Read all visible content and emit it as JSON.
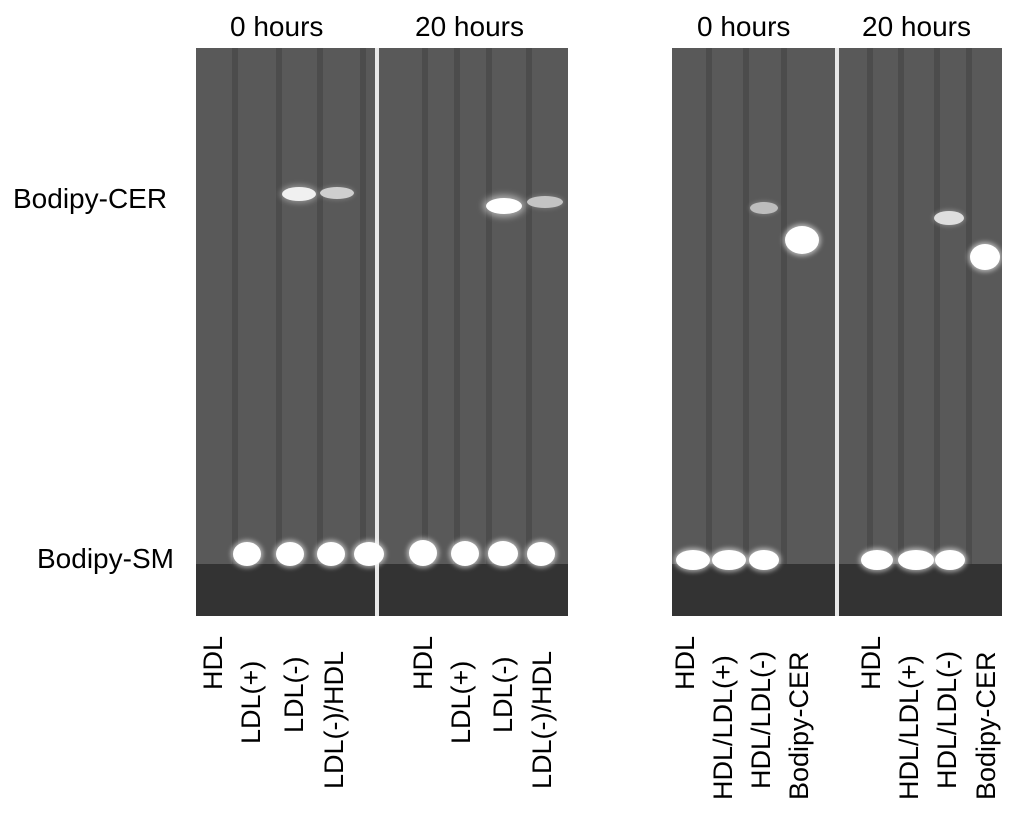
{
  "left_panel": {
    "group1_header": "0 hours",
    "group2_header": "20 hours",
    "lanes_group1": [
      "HDL",
      "LDL(+)",
      "LDL(-)",
      "LDL(-)/HDL"
    ],
    "lanes_group2": [
      "HDL",
      "LDL(+)",
      "LDL(-)",
      "LDL(-)/HDL"
    ]
  },
  "right_panel": {
    "group1_header": "0 hours",
    "group2_header": "20 hours",
    "lanes_group1": [
      "HDL",
      "HDL/LDL(+)",
      "HDL/LDL(-)",
      "Bodipy-CER"
    ],
    "lanes_group2": [
      "HDL",
      "HDL/LDL(+)",
      "HDL/LDL(-)",
      "Bodipy-CER"
    ]
  },
  "row_labels": {
    "upper": "Bodipy-CER",
    "lower": "Bodipy-SM"
  },
  "colors": {
    "gel_background": "#595959",
    "gel_bottom": "#333333",
    "spot": "#ffffff"
  }
}
